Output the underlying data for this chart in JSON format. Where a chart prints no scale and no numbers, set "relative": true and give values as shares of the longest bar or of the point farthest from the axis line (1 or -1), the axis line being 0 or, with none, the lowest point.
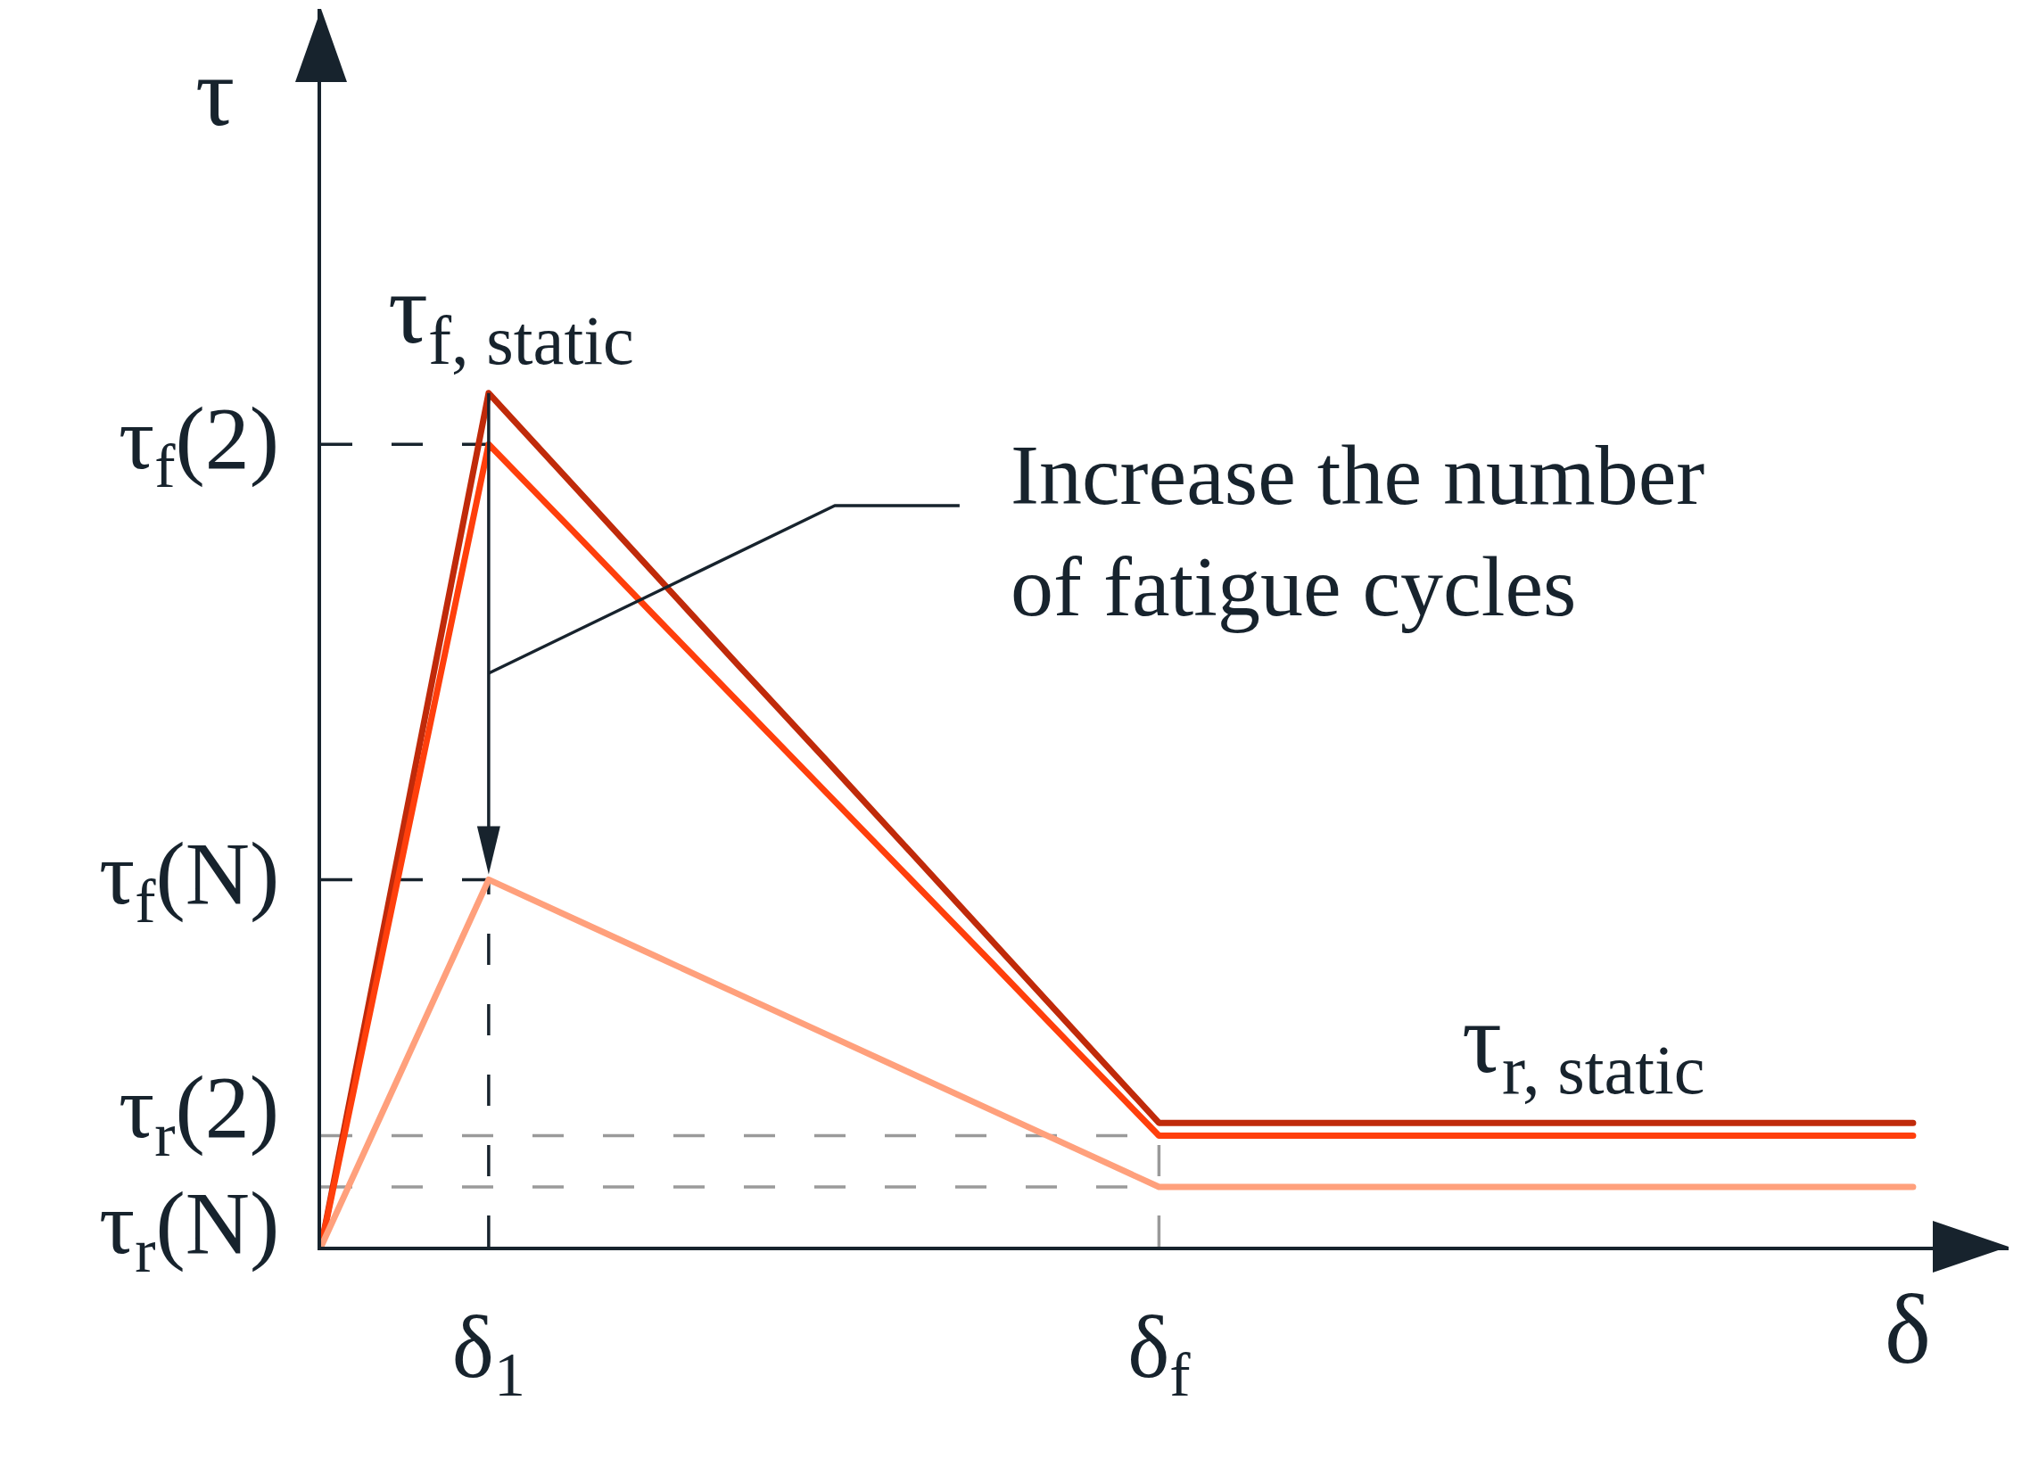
{
  "chart_data": {
    "type": "line",
    "relative": true,
    "categories": [
      null,
      null,
      "δ$_{1}$",
      null,
      null,
      null,
      null,
      null,
      null,
      null,
      "δ$_{f}$",
      null,
      null,
      null,
      null,
      null,
      null,
      null,
      null,
      null
    ],
    "series": [
      {
        "color": "#c02a0a",
        "values": [
          0,
          0.5,
          1,
          0.893,
          0.786,
          0.679,
          0.573,
          0.466,
          0.359,
          0.252,
          0.145,
          0.145,
          0.145,
          0.145,
          0.145,
          0.145,
          0.145,
          0.145,
          0.145,
          0.145
        ]
      },
      {
        "color": "#ff3f0c",
        "values": [
          0,
          0.47,
          0.94,
          0.839,
          0.737,
          0.636,
          0.535,
          0.434,
          0.333,
          0.231,
          0.13,
          0.13,
          0.13,
          0.13,
          0.13,
          0.13,
          0.13,
          0.13,
          0.13,
          0.13
        ]
      },
      {
        "color": "#ffa07c",
        "values": [
          0,
          0.215,
          0.43,
          0.385,
          0.34,
          0.295,
          0.25,
          0.205,
          0.16,
          0.115,
          0.07,
          0.07,
          0.07,
          0.07,
          0.07,
          0.07,
          0.07,
          0.07,
          0.07,
          0.07
        ]
      }
    ],
    "xlabel": "δ",
    "ylabel": "τ",
    "ref_lines": [
      {
        "axis": "y",
        "value": 0.94,
        "label": "τ$_{f}$(2)",
        "color": "#17232d",
        "line_style": "dashed"
      },
      {
        "axis": "y",
        "value": 0.43,
        "label": "τ$_{f}$(N)",
        "color": "#17232d",
        "line_style": "dashed"
      },
      {
        "axis": "y",
        "value": 0.13,
        "label": "τ$_{r}$(2)",
        "color": "#9a9a9a",
        "line_style": "dashed"
      },
      {
        "axis": "y",
        "value": 0.07,
        "label": "τ$_{r}$(N)",
        "color": "#9a9a9a",
        "line_style": "dashed"
      },
      {
        "axis": "x",
        "value": "δ$_{1}$",
        "color": "#17232d",
        "line_style": "dashed"
      },
      {
        "axis": "x",
        "value": "δ$_{f}$",
        "color": "#9a9a9a",
        "line_style": "dashed"
      }
    ],
    "annotations": [
      {
        "text": "τ$_{f, static}$",
        "x": "δ$_{1}$",
        "y": 1
      },
      "Increase the number\nof fatigue cycles",
      {
        "text": "τ$_{r, static}$",
        "y": 0.145
      }
    ]
  }
}
